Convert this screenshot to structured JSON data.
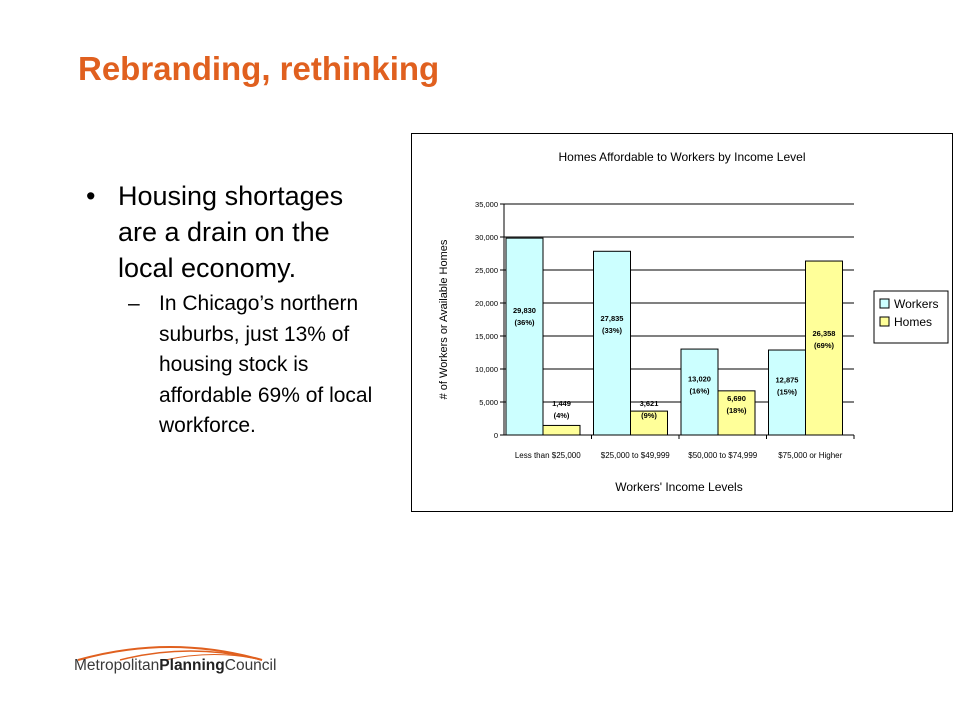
{
  "slide": {
    "title": "Rebranding, rethinking",
    "bullet": "Housing shortages are a drain on the local economy.",
    "sub_bullet": "In Chicago’s northern suburbs, just 13% of housing stock is affordable 69% of local workforce."
  },
  "logo": {
    "part1": "Metropolitan",
    "part2": "Planning",
    "part3": "Council"
  },
  "chart_data": {
    "type": "bar",
    "title": "Homes Affordable to Workers by Income Level",
    "xlabel": "Workers' Income Levels",
    "ylabel": "# of Workers or Available Homes",
    "ylim": [
      0,
      35000
    ],
    "yticks": [
      "0",
      "5,000",
      "10,000",
      "15,000",
      "20,000",
      "25,000",
      "30,000",
      "35,000"
    ],
    "categories": [
      "Less than $25,000",
      "$25,000 to $49,999",
      "$50,000 to $74,999",
      "$75,000 or Higher"
    ],
    "series": [
      {
        "name": "Workers",
        "color": "#ccffff",
        "values": [
          29830,
          27835,
          13020,
          12875
        ],
        "labels": [
          "29,830",
          "27,835",
          "13,020",
          "12,875"
        ],
        "percents": [
          "(36%)",
          "(33%)",
          "(16%)",
          "(15%)"
        ]
      },
      {
        "name": "Homes",
        "color": "#ffff99",
        "values": [
          1449,
          3621,
          6690,
          26358
        ],
        "labels": [
          "1,449",
          "3,621",
          "6,690",
          "26,358"
        ],
        "percents": [
          "(4%)",
          "(9%)",
          "(18%)",
          "(69%)"
        ]
      }
    ],
    "grid": true,
    "legend": "right"
  }
}
